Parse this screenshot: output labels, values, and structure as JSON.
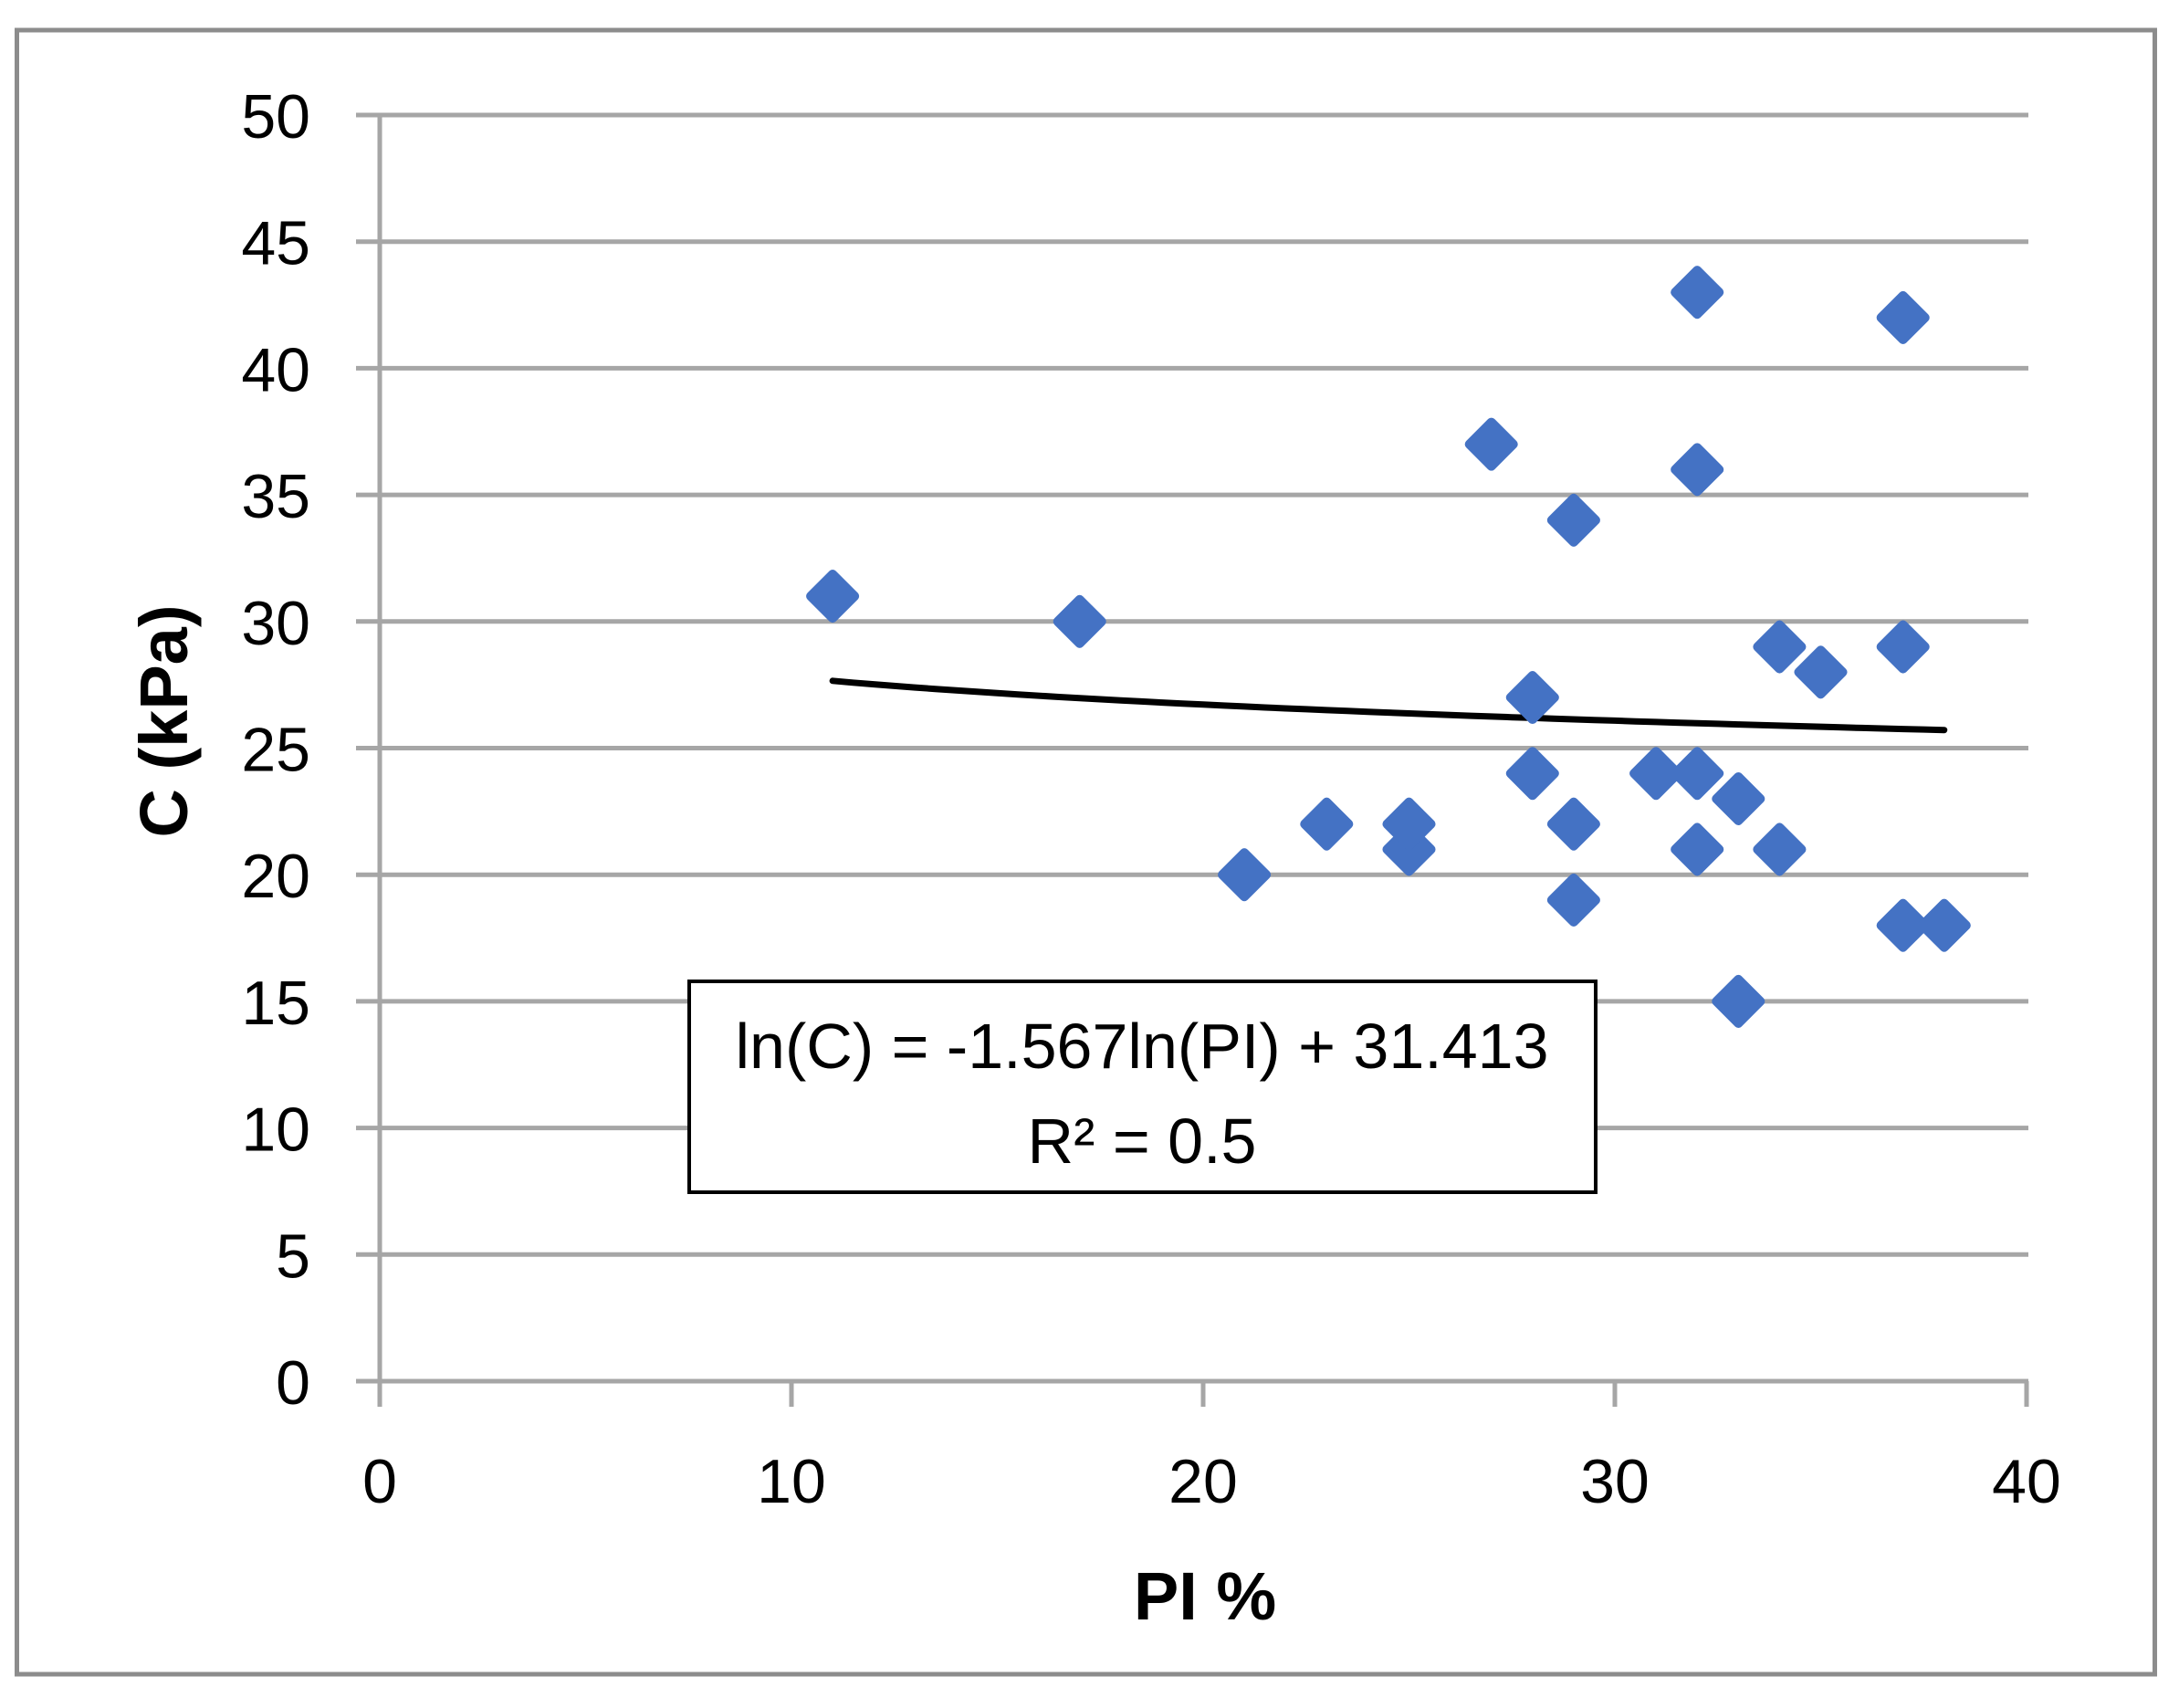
{
  "chart_data": {
    "type": "scatter",
    "title": "",
    "xlabel": "PI %",
    "ylabel": "C (kPa)",
    "xlim": [
      0,
      40
    ],
    "ylim": [
      0,
      50
    ],
    "x_ticks": [
      0,
      10,
      20,
      30,
      40
    ],
    "y_ticks": [
      0,
      5,
      10,
      15,
      20,
      25,
      30,
      35,
      40,
      45,
      50
    ],
    "x_tick_labels": [
      "0",
      "10",
      "20",
      "30",
      "40"
    ],
    "y_tick_labels": [
      "0",
      "5",
      "10",
      "15",
      "20",
      "25",
      "30",
      "35",
      "40",
      "45",
      "50"
    ],
    "grid": true,
    "legend": "none",
    "marker_shape": "diamond",
    "points": [
      [
        11,
        31
      ],
      [
        17,
        30
      ],
      [
        21,
        20
      ],
      [
        23,
        22
      ],
      [
        25,
        21
      ],
      [
        25,
        22
      ],
      [
        27,
        37
      ],
      [
        28,
        24
      ],
      [
        28,
        27
      ],
      [
        29,
        19
      ],
      [
        29,
        22
      ],
      [
        29,
        34
      ],
      [
        31,
        24
      ],
      [
        32,
        21
      ],
      [
        32,
        24
      ],
      [
        32,
        36
      ],
      [
        32,
        43
      ],
      [
        33,
        15
      ],
      [
        33,
        23
      ],
      [
        34,
        21
      ],
      [
        34,
        29
      ],
      [
        35,
        28
      ],
      [
        37,
        18
      ],
      [
        37,
        29
      ],
      [
        37,
        42
      ],
      [
        38,
        18
      ]
    ],
    "trendline": {
      "model": "logarithmic",
      "slope": -1.567,
      "intercept": 31.413,
      "x_start": 11,
      "x_end": 38
    },
    "annotation": {
      "line1": "ln(C) = -1.567ln(PI) + 31.413",
      "line2": "R² = 0.5"
    },
    "colors": {
      "marker": "#4472C4",
      "gridline": "#A6A6A6",
      "trendline": "#000000",
      "frame": "#8C8C8C",
      "annotation_border": "#000000",
      "annotation_bg": "#FFFFFF"
    }
  }
}
